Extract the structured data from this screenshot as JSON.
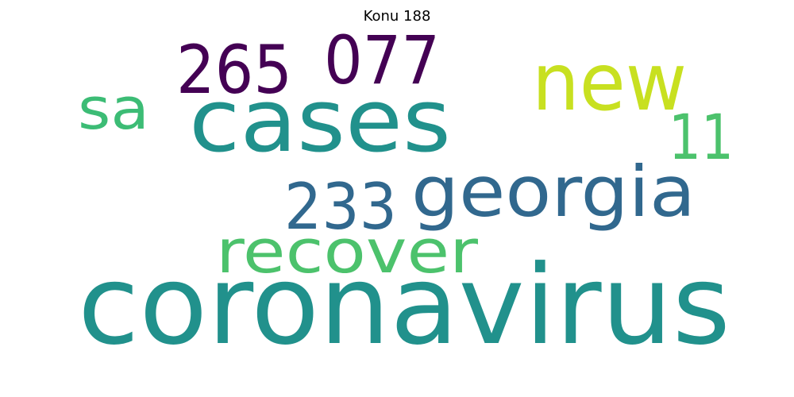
{
  "title": "Konu 188",
  "words": [
    {
      "text": "coronavirus",
      "color": "#21918c"
    },
    {
      "text": "cases",
      "color": "#21918c"
    },
    {
      "text": "new",
      "color": "#c8e020"
    },
    {
      "text": "georgia",
      "color": "#31688e"
    },
    {
      "text": "recover",
      "color": "#4cc26c"
    },
    {
      "text": "265",
      "color": "#440154"
    },
    {
      "text": "077",
      "color": "#440154"
    },
    {
      "text": "233",
      "color": "#31688e"
    },
    {
      "text": "sa",
      "color": "#3cbc75"
    },
    {
      "text": "11",
      "color": "#4cc26c"
    }
  ]
}
